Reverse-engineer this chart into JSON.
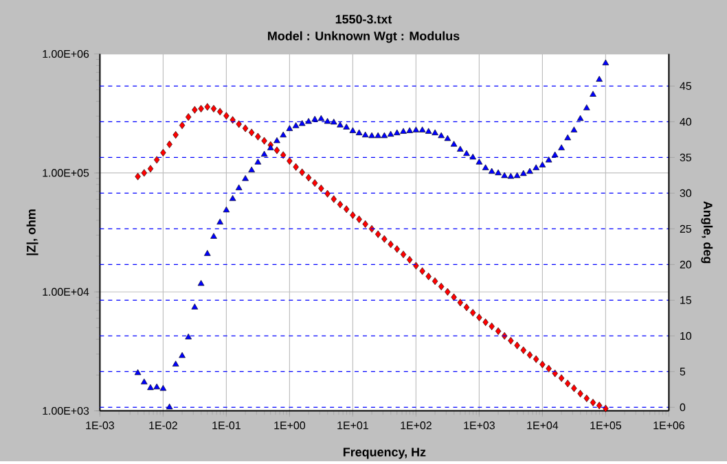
{
  "chart_data": {
    "type": "scatter",
    "title": "1550-3.txt",
    "subtitle": "Model : Unknown     Wgt : Modulus",
    "xlabel": "Frequency,  Hz",
    "ylabel": "|Z|,  ohm",
    "y2label": "Angle,  deg",
    "x": [
      0.00398,
      0.00501,
      0.00631,
      0.00794,
      0.01,
      0.0126,
      0.0158,
      0.02,
      0.0251,
      0.0316,
      0.0398,
      0.0501,
      0.0631,
      0.0794,
      0.1,
      0.126,
      0.158,
      0.2,
      0.251,
      0.316,
      0.398,
      0.501,
      0.631,
      0.794,
      1,
      1.26,
      1.58,
      2,
      2.51,
      3.16,
      3.98,
      5.01,
      6.31,
      7.94,
      10,
      12.6,
      15.8,
      20,
      25.1,
      31.6,
      39.8,
      50.1,
      63.1,
      79.4,
      100,
      126,
      158,
      200,
      251,
      316,
      398,
      501,
      631,
      794,
      1000,
      1260,
      1580,
      2000,
      2510,
      3160,
      3980,
      5010,
      6310,
      7940,
      10000,
      12600,
      15800,
      20000,
      25100,
      31600,
      39800,
      50100,
      63100,
      79400,
      100000
    ],
    "series": [
      {
        "color": "#ff0000",
        "marker": "diamond",
        "values": [
          93300,
          100000,
          108400,
          128800,
          147900,
          173800,
          208900,
          251200,
          295100,
          338800,
          346700,
          358900,
          346700,
          327300,
          302000,
          278600,
          257000,
          237100,
          218800,
          201800,
          186200,
          171800,
          154900,
          141300,
          125900,
          112200,
          101200,
          91200,
          82220,
          74130,
          66830,
          60260,
          54330,
          49550,
          44160,
          40740,
          37150,
          33880,
          30550,
          27860,
          25120,
          22910,
          20650,
          18620,
          16600,
          14960,
          13490,
          12300,
          11090,
          10000,
          9016,
          8128,
          7413,
          6683,
          6095,
          5559,
          5129,
          4677,
          4266,
          3890,
          3548,
          3236,
          2951,
          2723,
          2455,
          2265,
          2065,
          1884,
          1698,
          1549,
          1396,
          1274,
          1175,
          1109,
          1047
        ]
      },
      {
        "color": "#0000ff",
        "marker": "triangle",
        "axis": "y2",
        "values": [
          4.8,
          3.5,
          2.7,
          2.8,
          2.6,
          0,
          6.0,
          7.2,
          9.8,
          14.0,
          17.3,
          21.5,
          23.9,
          25.9,
          27.6,
          29.2,
          30.7,
          32.0,
          33.2,
          34.3,
          35.4,
          36.3,
          37.3,
          38.1,
          39.0,
          39.4,
          39.7,
          40.0,
          40.3,
          40.4,
          40.0,
          39.9,
          39.5,
          39.2,
          38.7,
          38.4,
          38.1,
          38.0,
          38.0,
          38.0,
          38.2,
          38.4,
          38.6,
          38.7,
          38.8,
          38.8,
          38.6,
          38.4,
          38.0,
          37.6,
          36.8,
          36.1,
          35.5,
          35.0,
          34.3,
          33.5,
          33.0,
          32.8,
          32.4,
          32.3,
          32.4,
          32.7,
          33.0,
          33.5,
          33.9,
          34.6,
          35.3,
          36.3,
          37.7,
          38.8,
          40.4,
          41.9,
          43.8,
          45.9,
          48.2
        ]
      }
    ],
    "log": "xy",
    "grid": true,
    "xlim": [
      0.001,
      1000000
    ],
    "xticks": [
      {
        "value": 0.001,
        "label": "1E-03"
      },
      {
        "value": 0.01,
        "label": "1E-02"
      },
      {
        "value": 0.1,
        "label": "1E-01"
      },
      {
        "value": 1,
        "label": "1E+00"
      },
      {
        "value": 10,
        "label": "1E+01"
      },
      {
        "value": 100,
        "label": "1E+02"
      },
      {
        "value": 1000,
        "label": "1E+03"
      },
      {
        "value": 10000,
        "label": "1E+04"
      },
      {
        "value": 100000,
        "label": "1E+05"
      },
      {
        "value": 1000000,
        "label": "1E+06"
      }
    ],
    "ylim": [
      1000,
      1000000
    ],
    "yticks": [
      {
        "value": 1000,
        "label": "1.00E+03"
      },
      {
        "value": 10000,
        "label": "1.00E+04"
      },
      {
        "value": 100000,
        "label": "1.00E+05"
      },
      {
        "value": 1000000,
        "label": "1.00E+06"
      }
    ],
    "y2lim": [
      -0.5,
      49.5
    ],
    "y2ticks": [
      0,
      5,
      10,
      15,
      20,
      25,
      30,
      35,
      40,
      45
    ]
  }
}
